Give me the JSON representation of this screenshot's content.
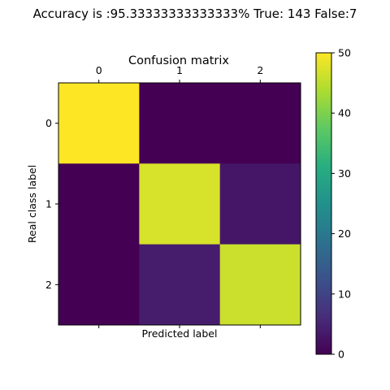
{
  "figure": {
    "suptitle": "Accuracy is :95.33333333333333% True: 143 False:7"
  },
  "chart_data": {
    "type": "heatmap",
    "title": "Confusion matrix",
    "xlabel": "Predicted label",
    "ylabel": "Real class label",
    "x_categories": [
      "0",
      "1",
      "2"
    ],
    "y_categories": [
      "0",
      "1",
      "2"
    ],
    "values": [
      [
        50,
        0,
        0
      ],
      [
        0,
        47,
        3
      ],
      [
        0,
        4,
        46
      ]
    ],
    "colormap": "viridis",
    "vmin": 0,
    "vmax": 50,
    "colorbar_ticks": [
      "0",
      "10",
      "20",
      "30",
      "40",
      "50"
    ],
    "x_ticks_position": "top"
  }
}
